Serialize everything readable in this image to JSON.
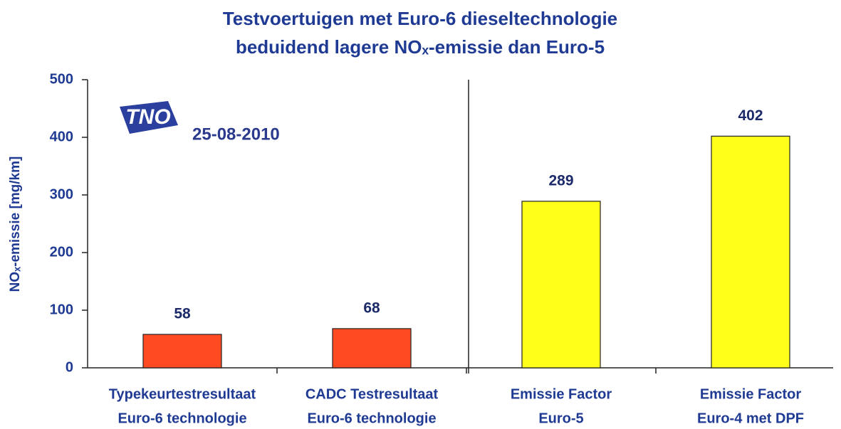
{
  "chart_data": {
    "type": "bar",
    "title": [
      "Testvoertuigen met Euro-6 dieseltechnologie",
      "beduidend lagere NOₓ-emissie dan Euro-5"
    ],
    "y_label": "NOₓ-emissie [mg/km]",
    "logo_text": "TNO",
    "annotation": "25-08-2010",
    "categories": [
      [
        "Typekeurtestresultaat",
        "Euro-6 technologie"
      ],
      [
        "CADC Testresultaat",
        "Euro-6 technologie"
      ],
      [
        "Emissie Factor",
        "Euro-5"
      ],
      [
        "Emissie Factor",
        "Euro-4 met DPF"
      ]
    ],
    "values": [
      58,
      68,
      289,
      402
    ],
    "colors": [
      "#ff4a22",
      "#ff4a22",
      "#ffff1a",
      "#ffff1a"
    ],
    "ylim": [
      0,
      500
    ],
    "yticks": [
      0,
      100,
      200,
      300,
      400,
      500
    ],
    "grid": false
  }
}
